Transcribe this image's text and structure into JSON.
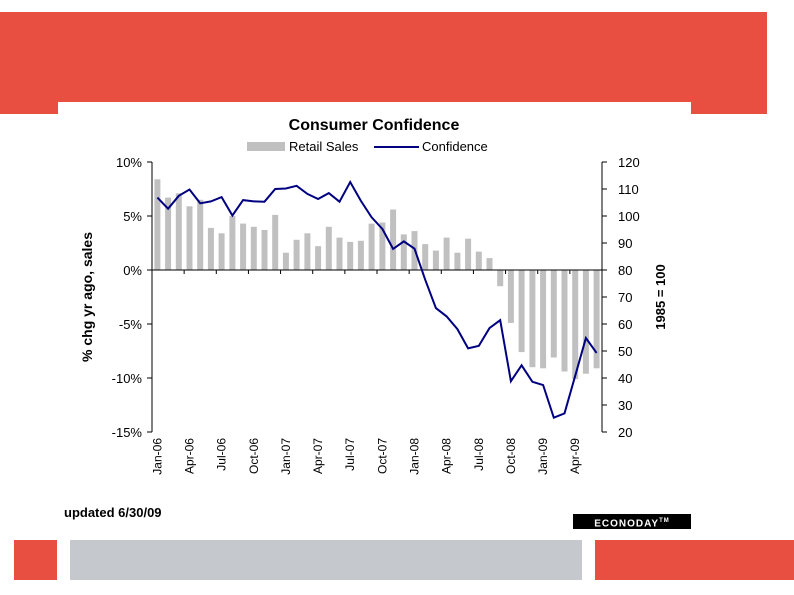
{
  "colors": {
    "band": "#e84f41",
    "footer_gray": "#c5c8cc",
    "bar": "#c0c0c0",
    "line": "#000080"
  },
  "note": "updated 6/30/09",
  "logo_text": "ECONODAY",
  "logo_tm": "TM",
  "chart_data": {
    "type": "bar+line",
    "title": "Consumer Confidence",
    "legend": [
      "Retail Sales",
      "Confidence"
    ],
    "ylabel": "% chg yr ago, sales",
    "y2label": "1985 = 100",
    "ylim": [
      -15,
      10
    ],
    "y2lim": [
      20,
      120
    ],
    "y_ticks": [
      "10%",
      "5%",
      "0%",
      "-5%",
      "-10%",
      "-15%"
    ],
    "y2_ticks": [
      "120",
      "110",
      "100",
      "90",
      "80",
      "70",
      "60",
      "50",
      "40",
      "30",
      "20"
    ],
    "x_ticks": [
      "Jan-06",
      "Apr-06",
      "Jul-06",
      "Oct-06",
      "Jan-07",
      "Apr-07",
      "Jul-07",
      "Oct-07",
      "Jan-08",
      "Apr-08",
      "Jul-08",
      "Oct-08",
      "Jan-09",
      "Apr-09"
    ],
    "months": [
      "Jan-06",
      "Feb-06",
      "Mar-06",
      "Apr-06",
      "May-06",
      "Jun-06",
      "Jul-06",
      "Aug-06",
      "Sep-06",
      "Oct-06",
      "Nov-06",
      "Dec-06",
      "Jan-07",
      "Feb-07",
      "Mar-07",
      "Apr-07",
      "May-07",
      "Jun-07",
      "Jul-07",
      "Aug-07",
      "Sep-07",
      "Oct-07",
      "Nov-07",
      "Dec-07",
      "Jan-08",
      "Feb-08",
      "Mar-08",
      "Apr-08",
      "May-08",
      "Jun-08",
      "Jul-08",
      "Aug-08",
      "Sep-08",
      "Oct-08",
      "Nov-08",
      "Dec-08",
      "Jan-09",
      "Feb-09",
      "Mar-09",
      "Apr-09",
      "May-09",
      "Jun-09"
    ],
    "series": [
      {
        "name": "Retail Sales",
        "type": "bar",
        "axis": "left",
        "values": [
          8.4,
          6.7,
          7.1,
          5.9,
          6.5,
          3.9,
          3.4,
          5.0,
          4.3,
          4.0,
          3.7,
          5.1,
          1.6,
          2.8,
          3.4,
          2.2,
          4.0,
          3.0,
          2.6,
          2.7,
          4.3,
          4.4,
          5.6,
          3.3,
          3.6,
          2.4,
          1.8,
          3.0,
          1.6,
          2.9,
          1.7,
          1.1,
          -1.5,
          -4.9,
          -7.6,
          -9.0,
          -9.1,
          -8.1,
          -9.4,
          -10.1,
          -9.6,
          -9.1
        ]
      },
      {
        "name": "Confidence",
        "type": "line",
        "axis": "right",
        "values": [
          106.8,
          102.7,
          107.5,
          109.8,
          104.7,
          105.4,
          107.0,
          100.2,
          105.9,
          105.4,
          105.3,
          110.0,
          110.2,
          111.2,
          108.2,
          106.3,
          108.5,
          105.3,
          112.6,
          105.6,
          99.5,
          95.2,
          87.8,
          90.6,
          87.9,
          76.4,
          65.9,
          62.8,
          58.1,
          51.0,
          51.9,
          58.5,
          61.4,
          38.8,
          44.7,
          38.6,
          37.4,
          25.3,
          26.9,
          40.8,
          54.8,
          49.3
        ]
      }
    ]
  }
}
